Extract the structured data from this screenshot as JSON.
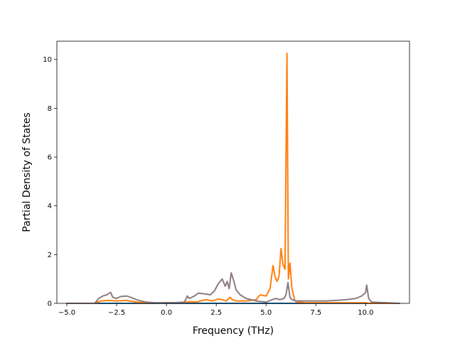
{
  "chart_data": {
    "type": "line",
    "title": "",
    "xlabel": "Frequency (THz)",
    "ylabel": "Partial Density of States",
    "xlim": [
      -5.5,
      12.2
    ],
    "ylim": [
      0,
      10.75
    ],
    "xticks": [
      -5.0,
      -2.5,
      0.0,
      2.5,
      5.0,
      7.5,
      10.0
    ],
    "xtick_labels": [
      "−5.0",
      "−2.5",
      "0.0",
      "2.5",
      "5.0",
      "7.5",
      "10.0"
    ],
    "yticks": [
      0,
      2,
      4,
      6,
      8,
      10
    ],
    "ytick_labels": [
      "0",
      "2",
      "4",
      "6",
      "8",
      "10"
    ],
    "grid": false,
    "legend": "none",
    "series": [
      {
        "color": "#1f77b4",
        "x": [
          -5.0,
          11.7
        ],
        "y": [
          0,
          0
        ]
      },
      {
        "color": "#ff7f0e",
        "x": [
          -5.0,
          -3.6,
          -3.3,
          -2.9,
          -2.5,
          -2.0,
          -1.5,
          -1.0,
          -0.5,
          0.0,
          0.5,
          1.0,
          1.2,
          1.5,
          1.8,
          2.0,
          2.3,
          2.6,
          2.8,
          3.0,
          3.2,
          3.3,
          3.5,
          4.0,
          4.5,
          4.7,
          5.0,
          5.2,
          5.35,
          5.45,
          5.55,
          5.65,
          5.75,
          5.85,
          5.95,
          6.05,
          6.12,
          6.2,
          6.3,
          6.45,
          6.6,
          7.0,
          7.5,
          8.0,
          8.5,
          9.0,
          9.5,
          10.0,
          10.2,
          11.7
        ],
        "y": [
          0,
          0,
          0.1,
          0.12,
          0.1,
          0.12,
          0.05,
          0.02,
          0.02,
          0.03,
          0.03,
          0.05,
          0.07,
          0.05,
          0.12,
          0.15,
          0.1,
          0.18,
          0.15,
          0.1,
          0.25,
          0.15,
          0.1,
          0.1,
          0.15,
          0.35,
          0.3,
          0.6,
          1.55,
          1.1,
          0.9,
          1.1,
          2.25,
          1.6,
          1.4,
          10.25,
          1.0,
          1.65,
          0.6,
          0.1,
          0.05,
          0.02,
          0.02,
          0.02,
          0.02,
          0.02,
          0.02,
          0.02,
          0.0,
          0.0
        ]
      },
      {
        "color": "#8c7b80",
        "x": [
          -5.0,
          -3.6,
          -3.4,
          -3.2,
          -3.0,
          -2.8,
          -2.7,
          -2.5,
          -2.3,
          -2.0,
          -1.8,
          -1.5,
          -1.3,
          -1.0,
          -0.5,
          0.0,
          0.5,
          0.9,
          1.05,
          1.15,
          1.4,
          1.6,
          1.8,
          2.0,
          2.2,
          2.4,
          2.6,
          2.8,
          2.95,
          3.05,
          3.15,
          3.25,
          3.35,
          3.5,
          3.7,
          4.0,
          4.5,
          5.0,
          5.3,
          5.5,
          5.7,
          5.9,
          6.0,
          6.1,
          6.2,
          6.3,
          6.5,
          7.0,
          7.5,
          8.0,
          8.5,
          9.0,
          9.5,
          9.8,
          10.0,
          10.05,
          10.15,
          10.3,
          11.7
        ],
        "y": [
          0,
          0,
          0.2,
          0.3,
          0.35,
          0.45,
          0.25,
          0.2,
          0.28,
          0.3,
          0.25,
          0.15,
          0.1,
          0.05,
          0.02,
          0.02,
          0.03,
          0.05,
          0.3,
          0.2,
          0.3,
          0.42,
          0.4,
          0.38,
          0.35,
          0.5,
          0.8,
          1.0,
          0.7,
          0.9,
          0.6,
          1.25,
          1.0,
          0.55,
          0.35,
          0.2,
          0.1,
          0.05,
          0.15,
          0.2,
          0.15,
          0.2,
          0.35,
          0.85,
          0.25,
          0.15,
          0.1,
          0.1,
          0.1,
          0.1,
          0.12,
          0.15,
          0.2,
          0.3,
          0.45,
          0.75,
          0.2,
          0.05,
          0.0
        ]
      }
    ]
  }
}
